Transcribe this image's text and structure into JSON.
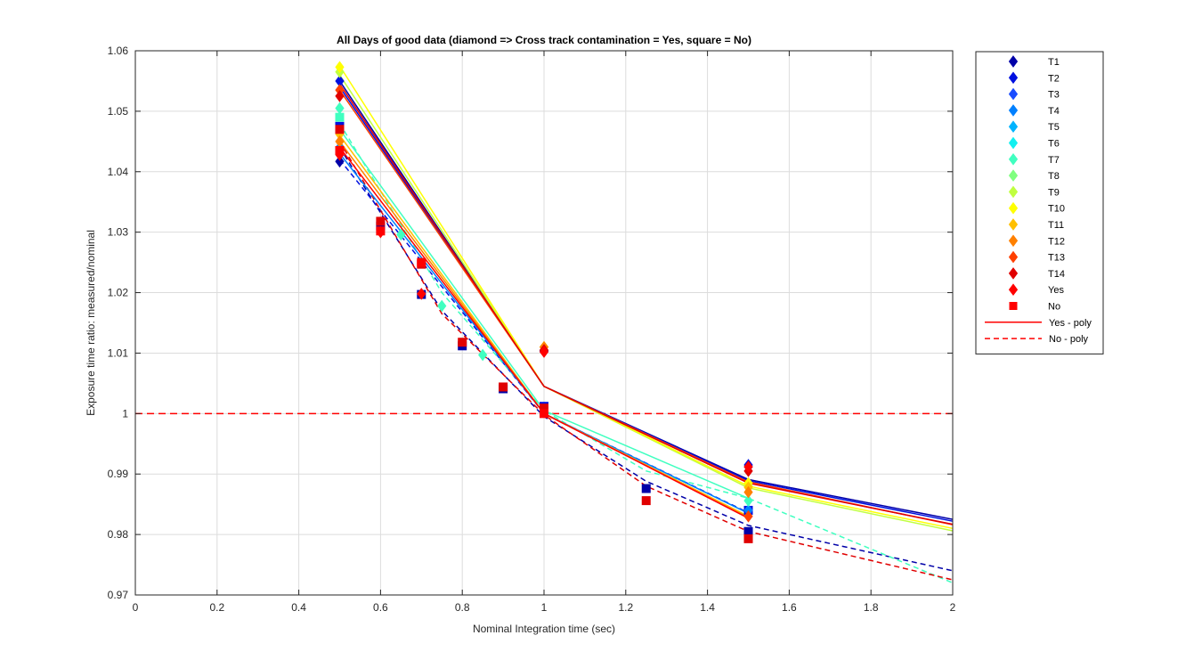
{
  "chart_data": {
    "type": "scatter",
    "title": "All Days of good data  (diamond => Cross track contamination = Yes, square = No)",
    "xlabel": "Nominal Integration time (sec)",
    "ylabel": "Exposure time ratio: measured/nominal",
    "xlim": [
      0,
      2
    ],
    "ylim": [
      0.97,
      1.06
    ],
    "xticks": [
      "0",
      "0.2",
      "0.4",
      "0.6",
      "0.8",
      "1",
      "1.2",
      "1.4",
      "1.6",
      "1.8",
      "2"
    ],
    "yticks": [
      "0.97",
      "0.98",
      "0.99",
      "1",
      "1.01",
      "1.02",
      "1.03",
      "1.04",
      "1.05",
      "1.06"
    ],
    "grid": true,
    "legend_position": "outside-right",
    "reference_line": {
      "y": 1,
      "style": "dashed",
      "color": "#ff0000"
    },
    "legend": [
      {
        "label": "T1",
        "marker": "diamond",
        "color": "#0000a8"
      },
      {
        "label": "T2",
        "marker": "diamond",
        "color": "#0010e0"
      },
      {
        "label": "T3",
        "marker": "diamond",
        "color": "#1a4cff"
      },
      {
        "label": "T4",
        "marker": "diamond",
        "color": "#0080ff"
      },
      {
        "label": "T5",
        "marker": "diamond",
        "color": "#00b4ff"
      },
      {
        "label": "T6",
        "marker": "diamond",
        "color": "#12f0f0"
      },
      {
        "label": "T7",
        "marker": "diamond",
        "color": "#40ffc0"
      },
      {
        "label": "T8",
        "marker": "diamond",
        "color": "#80ff80"
      },
      {
        "label": "T9",
        "marker": "diamond",
        "color": "#c0ff40"
      },
      {
        "label": "T10",
        "marker": "diamond",
        "color": "#ffff00"
      },
      {
        "label": "T11",
        "marker": "diamond",
        "color": "#ffc000"
      },
      {
        "label": "T12",
        "marker": "diamond",
        "color": "#ff8000"
      },
      {
        "label": "T13",
        "marker": "diamond",
        "color": "#ff4000"
      },
      {
        "label": "T14",
        "marker": "diamond",
        "color": "#e00000"
      },
      {
        "label": "Yes",
        "marker": "diamond",
        "color": "#ff0000"
      },
      {
        "label": "No",
        "marker": "square",
        "color": "#ff0000"
      },
      {
        "label": "Yes - poly",
        "marker": "line-solid",
        "color": "#ff0000"
      },
      {
        "label": "No - poly",
        "marker": "line-dashed",
        "color": "#ff0000"
      }
    ],
    "series": [
      {
        "label_ref": "T1",
        "color": "#0000a8",
        "yes_points": [
          [
            0.5,
            1.0417
          ],
          [
            1.0,
            1.0104
          ],
          [
            1.5,
            0.9912
          ]
        ],
        "no_points": [
          [
            0.6,
            1.031
          ],
          [
            0.7,
            1.0197
          ],
          [
            0.8,
            1.0112
          ],
          [
            0.9,
            1.0041
          ],
          [
            1.0,
            1.0004
          ],
          [
            1.25,
            0.9876
          ],
          [
            1.5,
            0.9805
          ]
        ],
        "yes_poly": [
          [
            0.5,
            1.055
          ],
          [
            1.0,
            1.0045
          ],
          [
            1.5,
            0.9891
          ],
          [
            2.0,
            0.9825
          ]
        ],
        "no_poly": [
          [
            0.5,
            1.044
          ],
          [
            0.75,
            1.017
          ],
          [
            1.0,
            0.9995
          ],
          [
            1.25,
            0.9888
          ],
          [
            1.5,
            0.9815
          ],
          [
            2.0,
            0.974
          ]
        ]
      },
      {
        "label_ref": "T2",
        "color": "#0010e0",
        "yes_points": [
          [
            0.5,
            1.055
          ],
          [
            1.0,
            1.0103
          ],
          [
            1.5,
            0.9915
          ]
        ],
        "no_points": [
          [
            0.5,
            1.0475
          ],
          [
            1.0,
            1.0012
          ],
          [
            1.5,
            0.984
          ]
        ],
        "yes_poly": [
          [
            0.5,
            1.054
          ],
          [
            1.0,
            1.0045
          ],
          [
            1.5,
            0.9889
          ],
          [
            2.0,
            0.9822
          ]
        ],
        "no_poly": [
          [
            0.5,
            1.042
          ],
          [
            1.0,
            1.0
          ],
          [
            1.5,
            0.9836
          ]
        ]
      },
      {
        "label_ref": "T4",
        "color": "#0080ff",
        "yes_points": [
          [
            0.5,
            1.044
          ],
          [
            1.5,
            0.984
          ]
        ],
        "no_points": [],
        "yes_poly": [
          [
            0.5,
            1.043
          ],
          [
            1.0,
            1.0
          ],
          [
            1.5,
            0.9835
          ]
        ],
        "no_poly": []
      },
      {
        "label_ref": "T7",
        "color": "#40ffc0",
        "yes_points": [
          [
            0.5,
            1.0505
          ],
          [
            0.65,
            1.0296
          ],
          [
            0.75,
            1.0178
          ],
          [
            0.85,
            1.0097
          ],
          [
            1.5,
            0.9856
          ]
        ],
        "no_points": [
          [
            0.5,
            1.049
          ]
        ],
        "yes_poly": [
          [
            0.5,
            1.047
          ],
          [
            1.0,
            1.0005
          ],
          [
            1.5,
            0.986
          ]
        ],
        "no_poly": [
          [
            0.5,
            1.048
          ],
          [
            0.75,
            1.02
          ],
          [
            1.0,
            1.0005
          ],
          [
            1.25,
            0.9905
          ],
          [
            1.5,
            0.986
          ],
          [
            2.0,
            0.972
          ]
        ]
      },
      {
        "label_ref": "T9",
        "color": "#c0ff40",
        "yes_points": [
          [
            0.5,
            1.0565
          ],
          [
            1.5,
            0.988
          ]
        ],
        "no_points": [],
        "yes_poly": [
          [
            0.5,
            1.056
          ],
          [
            1.0,
            1.0045
          ],
          [
            1.5,
            0.9877
          ],
          [
            2.0,
            0.9806
          ]
        ],
        "no_poly": []
      },
      {
        "label_ref": "T10",
        "color": "#ffff00",
        "yes_points": [
          [
            0.5,
            1.0573
          ],
          [
            1.0,
            1.011
          ],
          [
            1.5,
            0.9885
          ]
        ],
        "no_points": [],
        "yes_poly": [
          [
            0.5,
            1.0575
          ],
          [
            1.0,
            1.0045
          ],
          [
            1.5,
            0.988
          ],
          [
            2.0,
            0.981
          ]
        ],
        "no_poly": []
      },
      {
        "label_ref": "T11",
        "color": "#ffc000",
        "yes_points": [
          [
            0.5,
            1.0462
          ],
          [
            1.5,
            0.9878
          ]
        ],
        "no_points": [],
        "yes_poly": [
          [
            0.5,
            1.046
          ],
          [
            1.0,
            1.0
          ],
          [
            1.5,
            0.983
          ]
        ],
        "no_poly": []
      },
      {
        "label_ref": "T12",
        "color": "#ff8000",
        "yes_points": [
          [
            0.5,
            1.045
          ],
          [
            1.0,
            1.011
          ],
          [
            1.5,
            0.987
          ]
        ],
        "no_points": [],
        "yes_poly": [
          [
            0.5,
            1.045
          ],
          [
            1.0,
            1.0
          ],
          [
            1.5,
            0.9828
          ]
        ],
        "no_poly": []
      },
      {
        "label_ref": "T13",
        "color": "#ff4000",
        "yes_points": [
          [
            0.5,
            1.0535
          ],
          [
            1.5,
            0.983
          ]
        ],
        "no_points": [],
        "yes_poly": [
          [
            0.5,
            1.0535
          ],
          [
            1.0,
            1.0045
          ],
          [
            1.5,
            0.9887
          ],
          [
            2.0,
            0.9816
          ]
        ],
        "no_poly": []
      },
      {
        "label_ref": "T14",
        "color": "#e00000",
        "yes_points": [
          [
            0.5,
            1.0525
          ],
          [
            1.0,
            1.0105
          ],
          [
            1.5,
            0.9905
          ]
        ],
        "no_points": [
          [
            0.5,
            1.047
          ],
          [
            0.6,
            1.0318
          ],
          [
            0.7,
            1.0247
          ],
          [
            0.8,
            1.0118
          ],
          [
            0.9,
            1.0044
          ],
          [
            1.0,
            1.0009
          ],
          [
            1.25,
            0.9856
          ],
          [
            1.5,
            0.9793
          ]
        ],
        "yes_poly": [
          [
            0.5,
            1.0545
          ],
          [
            1.0,
            1.0045
          ],
          [
            1.5,
            0.9885
          ],
          [
            2.0,
            0.9817
          ]
        ],
        "no_poly": [
          [
            0.5,
            1.045
          ],
          [
            0.75,
            1.0165
          ],
          [
            1.0,
            0.9998
          ],
          [
            1.25,
            0.988
          ],
          [
            1.5,
            0.9805
          ],
          [
            2.0,
            0.9725
          ]
        ]
      },
      {
        "label_ref": "Yes",
        "color": "#ff0000",
        "yes_points": [
          [
            0.5,
            1.0428
          ],
          [
            0.6,
            1.03
          ],
          [
            0.7,
            1.0198
          ],
          [
            1.0,
            1.0102
          ],
          [
            1.5,
            0.9912
          ]
        ],
        "no_points": [
          [
            0.5,
            1.0435
          ],
          [
            0.6,
            1.0302
          ],
          [
            0.7,
            1.025
          ],
          [
            1.0,
            1.0
          ]
        ],
        "yes_poly": [
          [
            0.5,
            1.044
          ],
          [
            1.0,
            1.0
          ],
          [
            1.5,
            0.9827
          ]
        ],
        "no_poly": []
      }
    ]
  }
}
